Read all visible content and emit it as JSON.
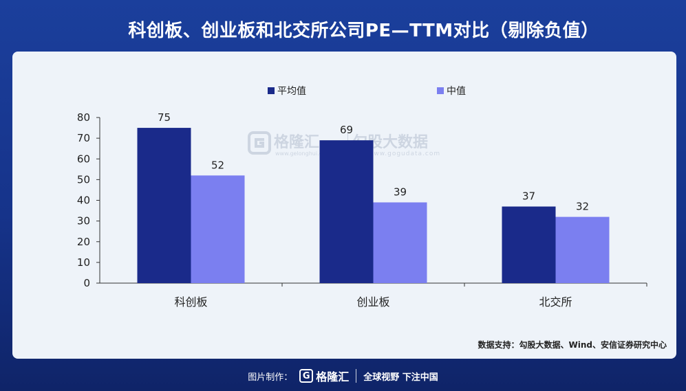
{
  "title": "科创板、创业板和北交所公司PE—TTM对比（剔除负值）",
  "watermark": {
    "brand": "格隆汇",
    "brand_url": "www.gelonghui.com",
    "right": "勾股大数据",
    "right_url": "www.gogudata.com"
  },
  "source": "数据支持：勾股大数据、Wind、安信证券研究中心",
  "footer": {
    "made_by": "图片制作：",
    "logo_letter": "G",
    "logo_text": "格隆汇",
    "slogan": "全球视野 下注中国"
  },
  "colors": {
    "average": "#1a2a8a",
    "median": "#7b7ff0"
  },
  "chart_data": {
    "type": "bar",
    "categories": [
      "科创板",
      "创业板",
      "北交所"
    ],
    "series": [
      {
        "name": "平均值",
        "values": [
          75,
          69,
          37
        ]
      },
      {
        "name": "中值",
        "values": [
          52,
          39,
          32
        ]
      }
    ],
    "ylim": [
      0,
      80
    ],
    "yticks": [
      0,
      10,
      20,
      30,
      40,
      50,
      60,
      70,
      80
    ],
    "legend_position": "top-center",
    "grid": false
  }
}
